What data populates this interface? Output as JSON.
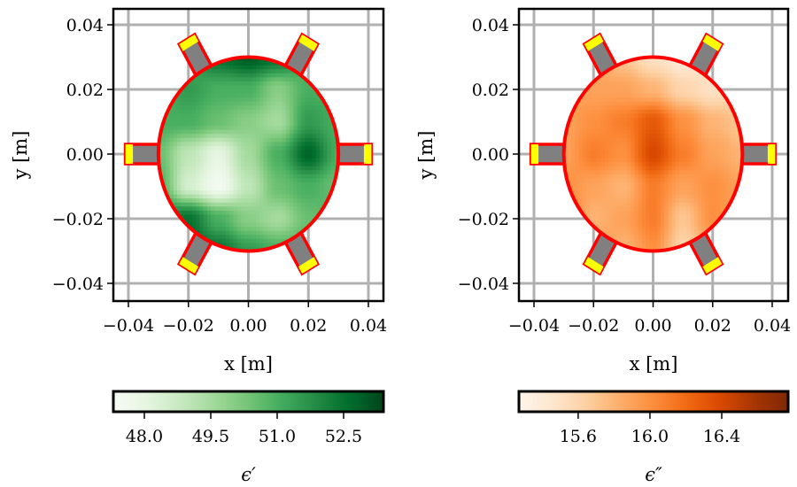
{
  "chart_data": [
    {
      "type": "heatmap",
      "xlabel": "x [m]",
      "ylabel": "y [m]",
      "xlim": [
        -0.045,
        0.045
      ],
      "ylim": [
        -0.045,
        0.045
      ],
      "xticks": [
        "−0.04",
        "−0.02",
        "0.00",
        "0.02",
        "0.04"
      ],
      "xtick_values": [
        -0.04,
        -0.02,
        0,
        0.02,
        0.04
      ],
      "yticks": [
        "−0.04",
        "−0.02",
        "0.00",
        "0.02",
        "0.04"
      ],
      "ytick_values": [
        -0.04,
        -0.02,
        0,
        0.02,
        0.04
      ],
      "grid": true,
      "colormap": "Greens",
      "colormap_stops": [
        "#f7fcf5",
        "#e5f5e0",
        "#c7e9c0",
        "#a1d99b",
        "#74c476",
        "#41ab5d",
        "#238b45",
        "#006d2c",
        "#00441b"
      ],
      "colorbar": {
        "label": "ϵ′",
        "range": [
          47.3,
          53.4
        ],
        "ticks": [
          "48.0",
          "49.5",
          "51.0",
          "52.5"
        ],
        "tick_values": [
          48.0,
          49.5,
          51.0,
          52.5
        ],
        "placement": "bottom"
      },
      "domain_radius": 0.03,
      "antenna_angles_deg": [
        0,
        60,
        120,
        180,
        240,
        300
      ],
      "grid_x": [
        -0.03,
        -0.02,
        -0.01,
        0,
        0.01,
        0.02,
        0.03
      ],
      "grid_y": [
        0.03,
        0.02,
        0.01,
        0,
        -0.01,
        -0.02,
        -0.03
      ],
      "values": [
        [
          51,
          51,
          52.5,
          53,
          52.5,
          51,
          51
        ],
        [
          51,
          51.5,
          51,
          51,
          50,
          51,
          51
        ],
        [
          51,
          51,
          50.5,
          50,
          49.5,
          51.5,
          51
        ],
        [
          50.5,
          49,
          48,
          49.5,
          51,
          52.8,
          51
        ],
        [
          51,
          48.5,
          47.5,
          49,
          50.5,
          51,
          50.5
        ],
        [
          52,
          52.5,
          51,
          50,
          49.5,
          50.5,
          51
        ],
        [
          52,
          53,
          52.5,
          51.5,
          51,
          51,
          51
        ]
      ]
    },
    {
      "type": "heatmap",
      "xlabel": "x [m]",
      "ylabel": "y [m]",
      "xlim": [
        -0.045,
        0.045
      ],
      "ylim": [
        -0.045,
        0.045
      ],
      "xticks": [
        "−0.04",
        "−0.02",
        "0.00",
        "0.02",
        "0.04"
      ],
      "xtick_values": [
        -0.04,
        -0.02,
        0,
        0.02,
        0.04
      ],
      "yticks": [
        "−0.04",
        "−0.02",
        "0.00",
        "0.02",
        "0.04"
      ],
      "ytick_values": [
        -0.04,
        -0.02,
        0,
        0.02,
        0.04
      ],
      "grid": true,
      "colormap": "Oranges",
      "colormap_stops": [
        "#fff5eb",
        "#fee6ce",
        "#fdd0a2",
        "#fdae6b",
        "#fd8d3c",
        "#f16913",
        "#d94801",
        "#a63603",
        "#7f2704"
      ],
      "colorbar": {
        "label": "ϵ″",
        "range": [
          15.27,
          16.77
        ],
        "ticks": [
          "15.6",
          "16.0",
          "16.4"
        ],
        "tick_values": [
          15.6,
          16.0,
          16.4
        ],
        "placement": "bottom"
      },
      "domain_radius": 0.03,
      "antenna_angles_deg": [
        0,
        60,
        120,
        180,
        240,
        300
      ],
      "grid_x": [
        -0.03,
        -0.02,
        -0.01,
        0,
        0.01,
        0.02,
        0.03
      ],
      "grid_y": [
        0.03,
        0.02,
        0.01,
        0,
        -0.01,
        -0.02,
        -0.03
      ],
      "values": [
        [
          15.9,
          15.9,
          15.7,
          15.5,
          15.4,
          15.5,
          15.6
        ],
        [
          15.9,
          15.9,
          15.9,
          15.8,
          15.6,
          15.5,
          15.6
        ],
        [
          15.9,
          16.0,
          16.1,
          16.3,
          16.0,
          15.8,
          15.7
        ],
        [
          15.9,
          16.1,
          16.0,
          16.4,
          16.1,
          15.9,
          15.8
        ],
        [
          16.0,
          15.9,
          15.8,
          16.1,
          15.9,
          16.0,
          15.9
        ],
        [
          16.2,
          15.8,
          15.9,
          16.1,
          15.7,
          16.0,
          15.9
        ],
        [
          16.2,
          16.0,
          15.8,
          16.0,
          15.6,
          15.8,
          15.9
        ]
      ]
    }
  ]
}
